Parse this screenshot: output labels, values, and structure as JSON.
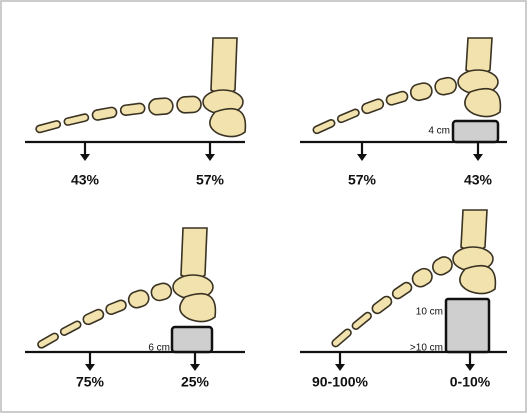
{
  "panels": [
    {
      "forefoot": "43%",
      "heel": "57%"
    },
    {
      "forefoot": "57%",
      "heel": "43%",
      "block_label": "4 cm"
    },
    {
      "forefoot": "75%",
      "heel": "25%",
      "block_label": "6 cm"
    },
    {
      "forefoot": "90-100%",
      "heel": "0-10%",
      "block_label": "10 cm",
      "block_label_2": ">10 cm"
    }
  ]
}
